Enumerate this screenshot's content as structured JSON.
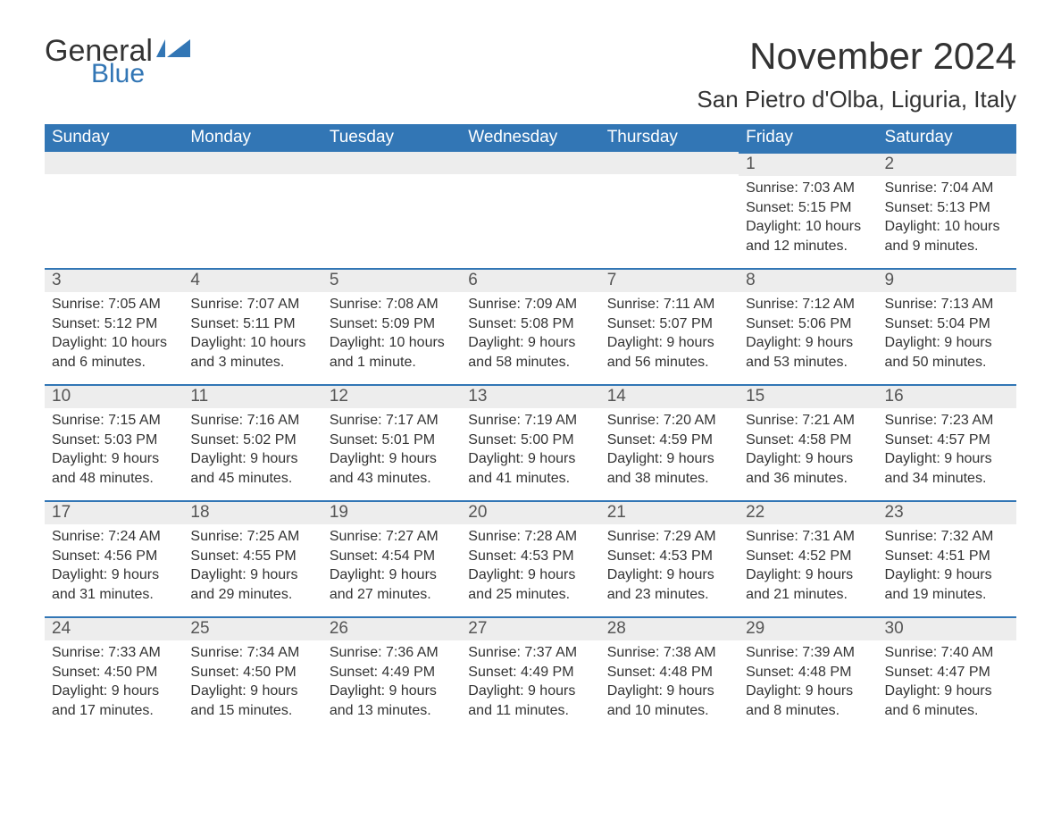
{
  "colors": {
    "header_bg": "#3276b5",
    "header_text": "#ffffff",
    "daybar_bg": "#ededed",
    "daybar_border": "#3276b5",
    "page_bg": "#ffffff",
    "body_text": "#333333",
    "logo_accent": "#3276b5"
  },
  "typography": {
    "title_fontsize": 42,
    "subtitle_fontsize": 26,
    "weekday_fontsize": 19,
    "daynum_fontsize": 19,
    "body_fontsize": 16,
    "font_family": "Arial"
  },
  "logo": {
    "text_main": "General",
    "text_sub": "Blue"
  },
  "title": {
    "month": "November 2024",
    "location": "San Pietro d'Olba, Liguria, Italy"
  },
  "weekdays": [
    "Sunday",
    "Monday",
    "Tuesday",
    "Wednesday",
    "Thursday",
    "Friday",
    "Saturday"
  ],
  "weeks": [
    [
      {
        "blank": true
      },
      {
        "blank": true
      },
      {
        "blank": true
      },
      {
        "blank": true
      },
      {
        "blank": true
      },
      {
        "day": "1",
        "sunrise": "Sunrise: 7:03 AM",
        "sunset": "Sunset: 5:15 PM",
        "daylight": "Daylight: 10 hours and 12 minutes."
      },
      {
        "day": "2",
        "sunrise": "Sunrise: 7:04 AM",
        "sunset": "Sunset: 5:13 PM",
        "daylight": "Daylight: 10 hours and 9 minutes."
      }
    ],
    [
      {
        "day": "3",
        "sunrise": "Sunrise: 7:05 AM",
        "sunset": "Sunset: 5:12 PM",
        "daylight": "Daylight: 10 hours and 6 minutes."
      },
      {
        "day": "4",
        "sunrise": "Sunrise: 7:07 AM",
        "sunset": "Sunset: 5:11 PM",
        "daylight": "Daylight: 10 hours and 3 minutes."
      },
      {
        "day": "5",
        "sunrise": "Sunrise: 7:08 AM",
        "sunset": "Sunset: 5:09 PM",
        "daylight": "Daylight: 10 hours and 1 minute."
      },
      {
        "day": "6",
        "sunrise": "Sunrise: 7:09 AM",
        "sunset": "Sunset: 5:08 PM",
        "daylight": "Daylight: 9 hours and 58 minutes."
      },
      {
        "day": "7",
        "sunrise": "Sunrise: 7:11 AM",
        "sunset": "Sunset: 5:07 PM",
        "daylight": "Daylight: 9 hours and 56 minutes."
      },
      {
        "day": "8",
        "sunrise": "Sunrise: 7:12 AM",
        "sunset": "Sunset: 5:06 PM",
        "daylight": "Daylight: 9 hours and 53 minutes."
      },
      {
        "day": "9",
        "sunrise": "Sunrise: 7:13 AM",
        "sunset": "Sunset: 5:04 PM",
        "daylight": "Daylight: 9 hours and 50 minutes."
      }
    ],
    [
      {
        "day": "10",
        "sunrise": "Sunrise: 7:15 AM",
        "sunset": "Sunset: 5:03 PM",
        "daylight": "Daylight: 9 hours and 48 minutes."
      },
      {
        "day": "11",
        "sunrise": "Sunrise: 7:16 AM",
        "sunset": "Sunset: 5:02 PM",
        "daylight": "Daylight: 9 hours and 45 minutes."
      },
      {
        "day": "12",
        "sunrise": "Sunrise: 7:17 AM",
        "sunset": "Sunset: 5:01 PM",
        "daylight": "Daylight: 9 hours and 43 minutes."
      },
      {
        "day": "13",
        "sunrise": "Sunrise: 7:19 AM",
        "sunset": "Sunset: 5:00 PM",
        "daylight": "Daylight: 9 hours and 41 minutes."
      },
      {
        "day": "14",
        "sunrise": "Sunrise: 7:20 AM",
        "sunset": "Sunset: 4:59 PM",
        "daylight": "Daylight: 9 hours and 38 minutes."
      },
      {
        "day": "15",
        "sunrise": "Sunrise: 7:21 AM",
        "sunset": "Sunset: 4:58 PM",
        "daylight": "Daylight: 9 hours and 36 minutes."
      },
      {
        "day": "16",
        "sunrise": "Sunrise: 7:23 AM",
        "sunset": "Sunset: 4:57 PM",
        "daylight": "Daylight: 9 hours and 34 minutes."
      }
    ],
    [
      {
        "day": "17",
        "sunrise": "Sunrise: 7:24 AM",
        "sunset": "Sunset: 4:56 PM",
        "daylight": "Daylight: 9 hours and 31 minutes."
      },
      {
        "day": "18",
        "sunrise": "Sunrise: 7:25 AM",
        "sunset": "Sunset: 4:55 PM",
        "daylight": "Daylight: 9 hours and 29 minutes."
      },
      {
        "day": "19",
        "sunrise": "Sunrise: 7:27 AM",
        "sunset": "Sunset: 4:54 PM",
        "daylight": "Daylight: 9 hours and 27 minutes."
      },
      {
        "day": "20",
        "sunrise": "Sunrise: 7:28 AM",
        "sunset": "Sunset: 4:53 PM",
        "daylight": "Daylight: 9 hours and 25 minutes."
      },
      {
        "day": "21",
        "sunrise": "Sunrise: 7:29 AM",
        "sunset": "Sunset: 4:53 PM",
        "daylight": "Daylight: 9 hours and 23 minutes."
      },
      {
        "day": "22",
        "sunrise": "Sunrise: 7:31 AM",
        "sunset": "Sunset: 4:52 PM",
        "daylight": "Daylight: 9 hours and 21 minutes."
      },
      {
        "day": "23",
        "sunrise": "Sunrise: 7:32 AM",
        "sunset": "Sunset: 4:51 PM",
        "daylight": "Daylight: 9 hours and 19 minutes."
      }
    ],
    [
      {
        "day": "24",
        "sunrise": "Sunrise: 7:33 AM",
        "sunset": "Sunset: 4:50 PM",
        "daylight": "Daylight: 9 hours and 17 minutes."
      },
      {
        "day": "25",
        "sunrise": "Sunrise: 7:34 AM",
        "sunset": "Sunset: 4:50 PM",
        "daylight": "Daylight: 9 hours and 15 minutes."
      },
      {
        "day": "26",
        "sunrise": "Sunrise: 7:36 AM",
        "sunset": "Sunset: 4:49 PM",
        "daylight": "Daylight: 9 hours and 13 minutes."
      },
      {
        "day": "27",
        "sunrise": "Sunrise: 7:37 AM",
        "sunset": "Sunset: 4:49 PM",
        "daylight": "Daylight: 9 hours and 11 minutes."
      },
      {
        "day": "28",
        "sunrise": "Sunrise: 7:38 AM",
        "sunset": "Sunset: 4:48 PM",
        "daylight": "Daylight: 9 hours and 10 minutes."
      },
      {
        "day": "29",
        "sunrise": "Sunrise: 7:39 AM",
        "sunset": "Sunset: 4:48 PM",
        "daylight": "Daylight: 9 hours and 8 minutes."
      },
      {
        "day": "30",
        "sunrise": "Sunrise: 7:40 AM",
        "sunset": "Sunset: 4:47 PM",
        "daylight": "Daylight: 9 hours and 6 minutes."
      }
    ]
  ]
}
